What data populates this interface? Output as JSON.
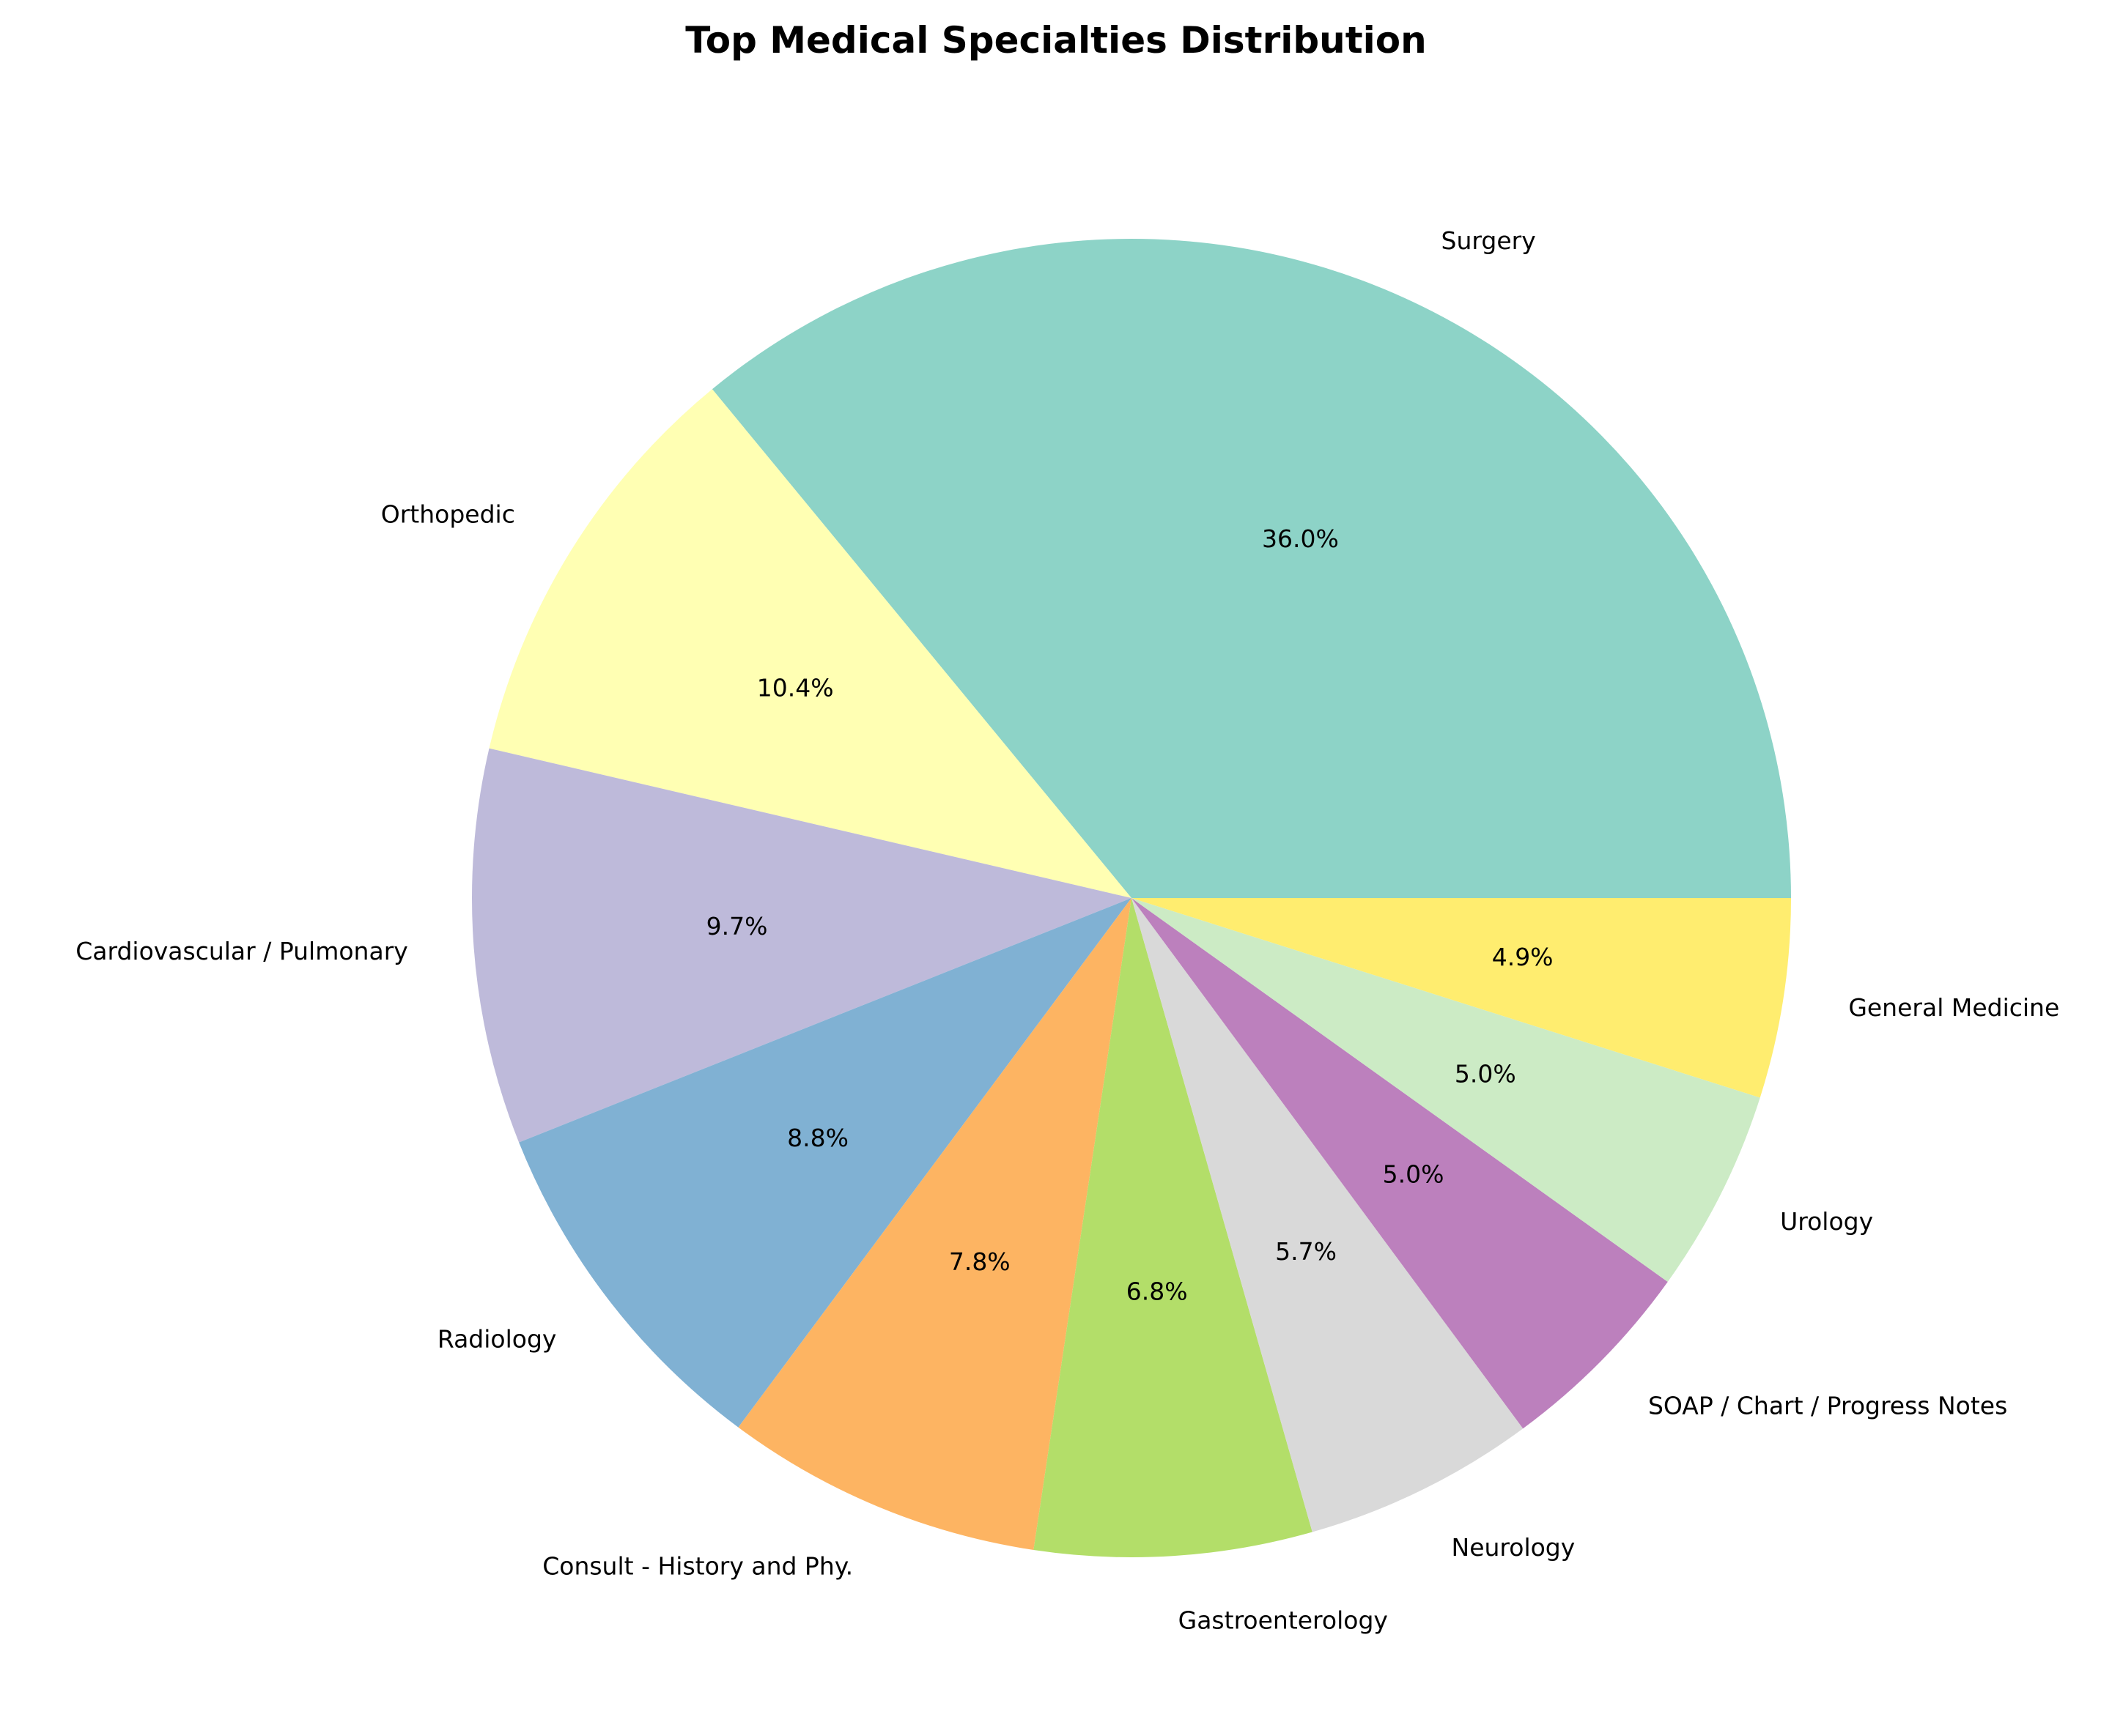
{
  "chart_data": {
    "type": "pie",
    "title": "Top Medical Specialties Distribution",
    "start_angle_deg": 0,
    "direction": "counterclockwise",
    "slices": [
      {
        "label": "Surgery",
        "value": 36.0,
        "pct_label": "36.0%",
        "color": "#8dd3c7"
      },
      {
        "label": "Orthopedic",
        "value": 10.4,
        "pct_label": "10.4%",
        "color": "#ffffb3"
      },
      {
        "label": "Cardiovascular / Pulmonary",
        "value": 9.7,
        "pct_label": "9.7%",
        "color": "#bebada"
      },
      {
        "label": "Radiology",
        "value": 8.8,
        "pct_label": "8.8%",
        "color": "#80b1d3"
      },
      {
        "label": "Consult - History and Phy.",
        "value": 7.8,
        "pct_label": "7.8%",
        "color": "#fdb462"
      },
      {
        "label": "Gastroenterology",
        "value": 6.8,
        "pct_label": "6.8%",
        "color": "#b3de69"
      },
      {
        "label": "Neurology",
        "value": 5.7,
        "pct_label": "5.7%",
        "color": "#d9d9d9"
      },
      {
        "label": "SOAP / Chart / Progress Notes",
        "value": 5.0,
        "pct_label": "5.0%",
        "color": "#bc80bd"
      },
      {
        "label": "Urology",
        "value": 5.0,
        "pct_label": "5.0%",
        "color": "#ccebc5"
      },
      {
        "label": "General Medicine",
        "value": 4.9,
        "pct_label": "4.9%",
        "color": "#ffed6f"
      }
    ]
  }
}
